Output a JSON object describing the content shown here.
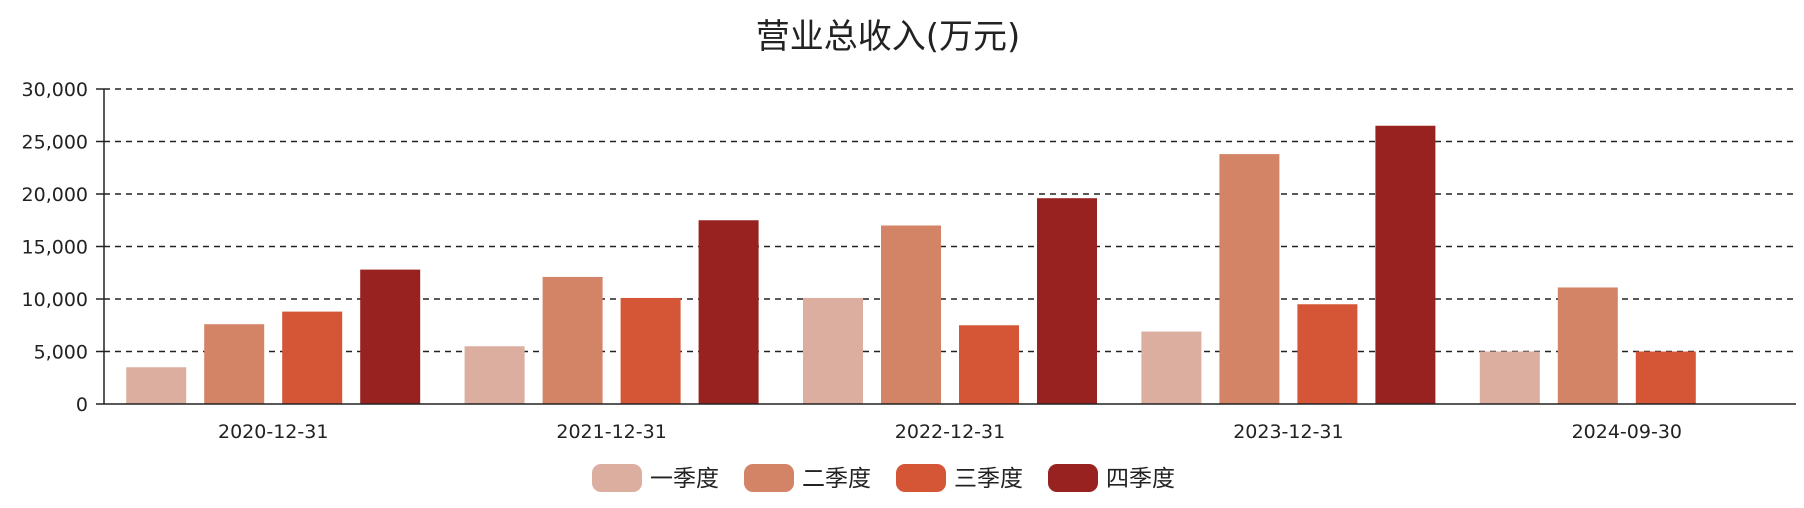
{
  "chart_data": {
    "type": "bar",
    "title": "营业总收入(万元)",
    "categories": [
      "2020-12-31",
      "2021-12-31",
      "2022-12-31",
      "2023-12-31",
      "2024-09-30"
    ],
    "series": [
      {
        "name": "一季度",
        "color": "#dcaea0",
        "values": [
          3500,
          5500,
          10100,
          6900,
          5000
        ]
      },
      {
        "name": "二季度",
        "color": "#d48466",
        "values": [
          7600,
          12100,
          17000,
          23800,
          11100
        ]
      },
      {
        "name": "三季度",
        "color": "#d45636",
        "values": [
          8800,
          10100,
          7500,
          9500,
          5000
        ]
      },
      {
        "name": "四季度",
        "color": "#97221f",
        "values": [
          12800,
          17500,
          19600,
          26500,
          null
        ]
      }
    ],
    "ylim": [
      0,
      30000
    ],
    "yticks": [
      0,
      5000,
      10000,
      15000,
      20000,
      25000,
      30000
    ],
    "ytick_labels": [
      "0",
      "5,000",
      "10,000",
      "15,000",
      "20,000",
      "25,000",
      "30,000"
    ],
    "grid": "horizontal-dashed",
    "legend_position": "bottom-center",
    "xlabel": "",
    "ylabel": ""
  }
}
